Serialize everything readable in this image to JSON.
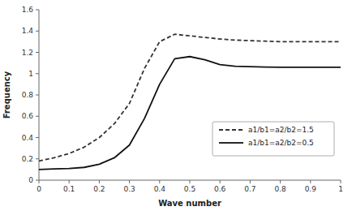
{
  "chart_data": {
    "type": "line",
    "xlabel": "Wave number",
    "ylabel": "Frequency",
    "x": [
      0.0,
      0.05,
      0.1,
      0.15,
      0.2,
      0.25,
      0.3,
      0.35,
      0.4,
      0.45,
      0.5,
      0.55,
      0.6,
      0.65,
      0.7,
      0.75,
      0.8,
      0.85,
      0.9,
      0.95,
      1.0
    ],
    "series": [
      {
        "name": "a1/b1=a2/b2=1.5",
        "color": "#333333",
        "line_style": "dashed",
        "values": [
          0.18,
          0.21,
          0.25,
          0.31,
          0.4,
          0.53,
          0.72,
          1.05,
          1.3,
          1.37,
          1.355,
          1.34,
          1.325,
          1.315,
          1.31,
          1.305,
          1.3,
          1.3,
          1.3,
          1.3,
          1.3
        ]
      },
      {
        "name": "a1/b1=a2/b2=0.5",
        "color": "#111111",
        "line_style": "solid",
        "values": [
          0.1,
          0.105,
          0.11,
          0.12,
          0.15,
          0.21,
          0.33,
          0.58,
          0.9,
          1.14,
          1.16,
          1.13,
          1.085,
          1.07,
          1.065,
          1.062,
          1.06,
          1.06,
          1.06,
          1.06,
          1.06
        ]
      }
    ],
    "xlim": [
      0,
      1
    ],
    "ylim": [
      0,
      1.6
    ],
    "xticks": [
      0,
      0.1,
      0.2,
      0.3,
      0.4,
      0.5,
      0.6,
      0.7,
      0.8,
      0.9,
      1
    ],
    "yticks": [
      0,
      0.2,
      0.4,
      0.6,
      0.8,
      1.0,
      1.2,
      1.4,
      1.6
    ],
    "grid": false,
    "legend": "lower right"
  }
}
